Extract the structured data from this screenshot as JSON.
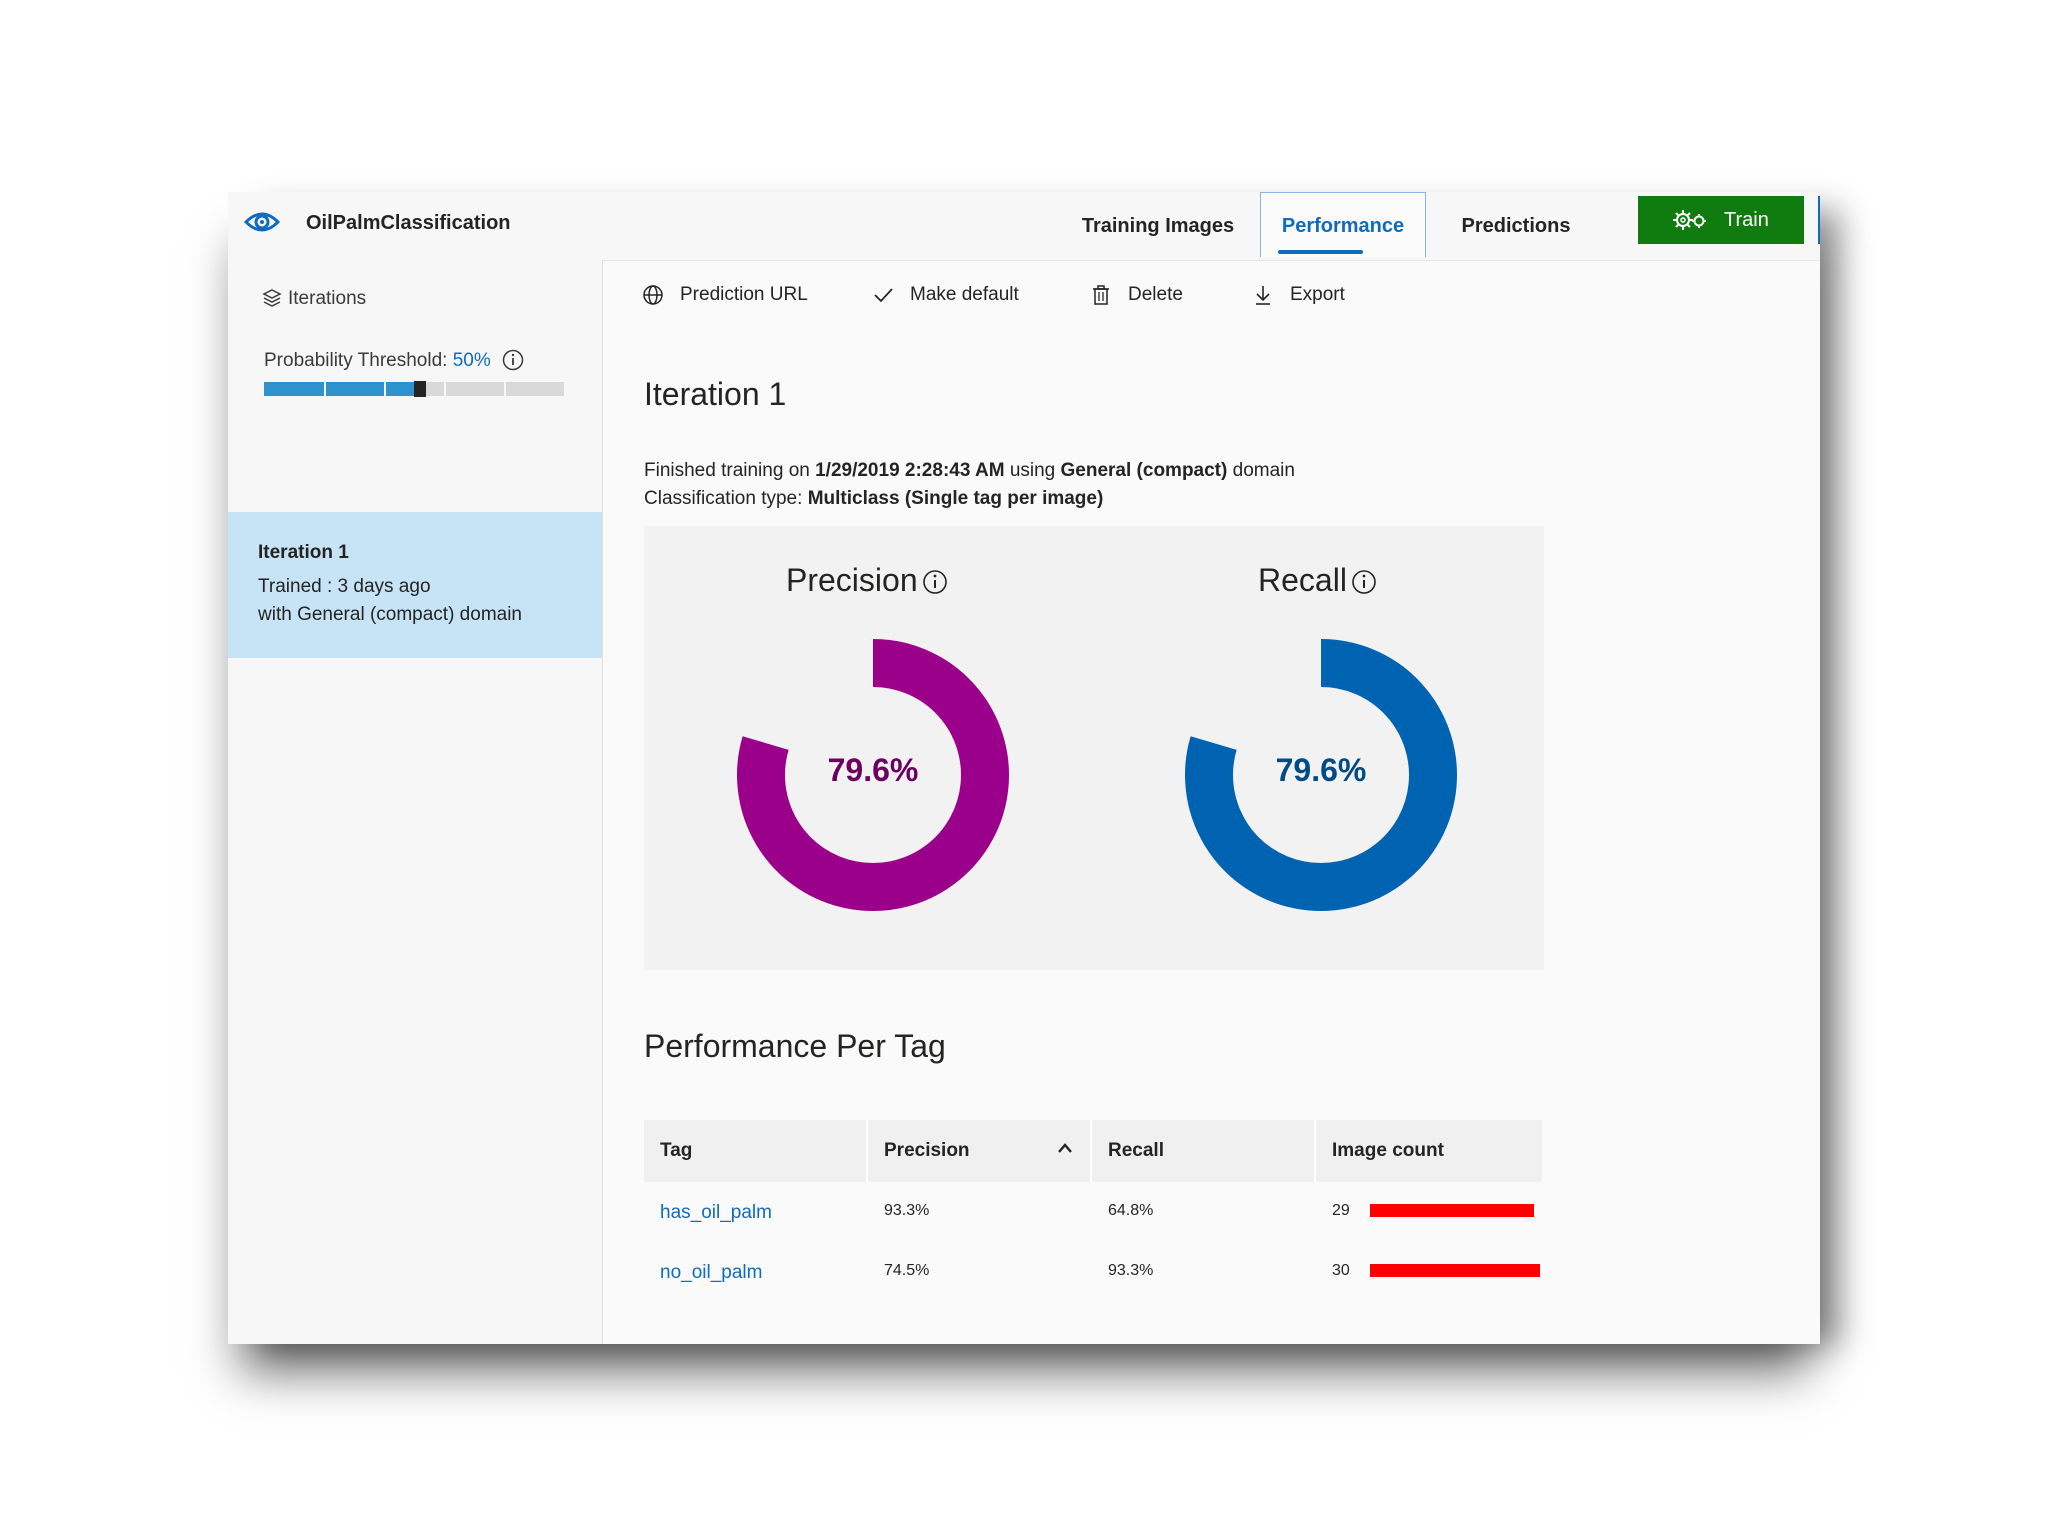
{
  "app": {
    "title": "OilPalmClassification"
  },
  "tabs": [
    {
      "label": "Training Images",
      "active": false
    },
    {
      "label": "Performance",
      "active": true
    },
    {
      "label": "Predictions",
      "active": false
    }
  ],
  "train_button": {
    "label": "Train"
  },
  "colors": {
    "accent": "#0f6cbd",
    "train": "#107c10",
    "precision": "#9b008b",
    "recall": "#0063b1",
    "selected_iteration": "#c7e4f7",
    "bar": "#ff0000"
  },
  "sidebar": {
    "iterations_label": "Iterations",
    "threshold_label": "Probability Threshold:",
    "threshold_value": "50%",
    "threshold_fraction": 0.5,
    "iteration": {
      "title": "Iteration 1",
      "trained": "Trained : 3 days ago",
      "domain": "with General (compact) domain"
    }
  },
  "toolbar": {
    "prediction_url": "Prediction URL",
    "make_default": "Make default",
    "delete": "Delete",
    "export": "Export"
  },
  "main": {
    "title": "Iteration 1",
    "finished_prefix": "Finished training on",
    "finished_date": "1/29/2019 2:28:43 AM",
    "finished_using": "using",
    "finished_domain": "General (compact)",
    "finished_suffix": "domain",
    "classification_prefix": "Classification type:",
    "classification_type": "Multiclass (Single tag per image)"
  },
  "metrics": {
    "precision": {
      "label": "Precision",
      "value_text": "79.6%",
      "value": 79.6
    },
    "recall": {
      "label": "Recall",
      "value_text": "79.6%",
      "value": 79.6
    }
  },
  "per_tag": {
    "title": "Performance Per Tag",
    "headers": [
      "Tag",
      "Precision",
      "Recall",
      "Image count"
    ],
    "rows": [
      {
        "tag": "has_oil_palm",
        "precision": "93.3%",
        "recall": "64.8%",
        "count": "29",
        "count_value": 29
      },
      {
        "tag": "no_oil_palm",
        "precision": "74.5%",
        "recall": "93.3%",
        "count": "30",
        "count_value": 30
      }
    ]
  }
}
